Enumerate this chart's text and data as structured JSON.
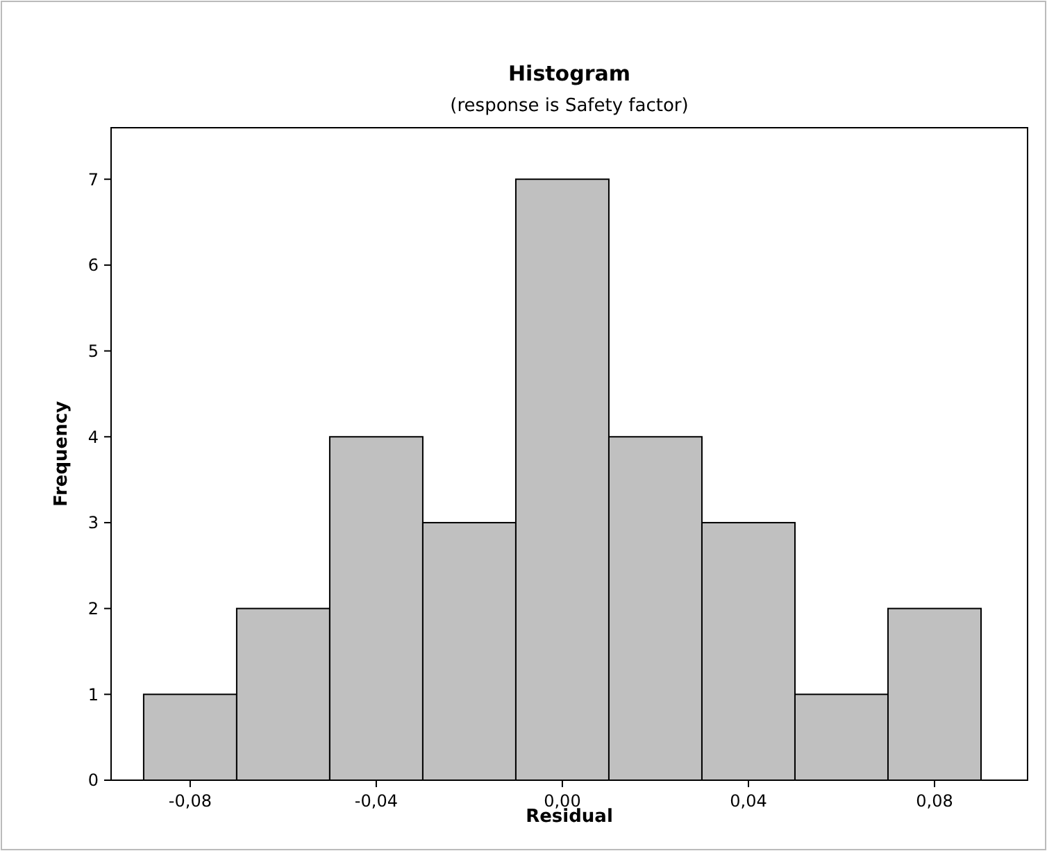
{
  "chart_data": {
    "type": "histogram",
    "title": "Histogram",
    "subtitle": "(response is Safety factor)",
    "xlabel": "Residual",
    "ylabel": "Frequency",
    "bins": [
      -0.09,
      -0.07,
      -0.05,
      -0.03,
      -0.01,
      0.01,
      0.03,
      0.05,
      0.07,
      0.09
    ],
    "values": [
      1,
      2,
      4,
      3,
      7,
      4,
      3,
      1,
      2
    ],
    "color": "#c0c0c0",
    "xlim": [
      -0.097,
      0.1
    ],
    "xticks": [
      {
        "value": -0.08,
        "label": "-0,08"
      },
      {
        "value": -0.04,
        "label": "-0,04"
      },
      {
        "value": 0,
        "label": "0,00"
      },
      {
        "value": 0.04,
        "label": "0,04"
      },
      {
        "value": 0.08,
        "label": "0,08"
      }
    ],
    "ylim": [
      0,
      7.6
    ],
    "yticks": [
      0,
      1,
      2,
      3,
      4,
      5,
      6,
      7
    ],
    "grid": false
  }
}
